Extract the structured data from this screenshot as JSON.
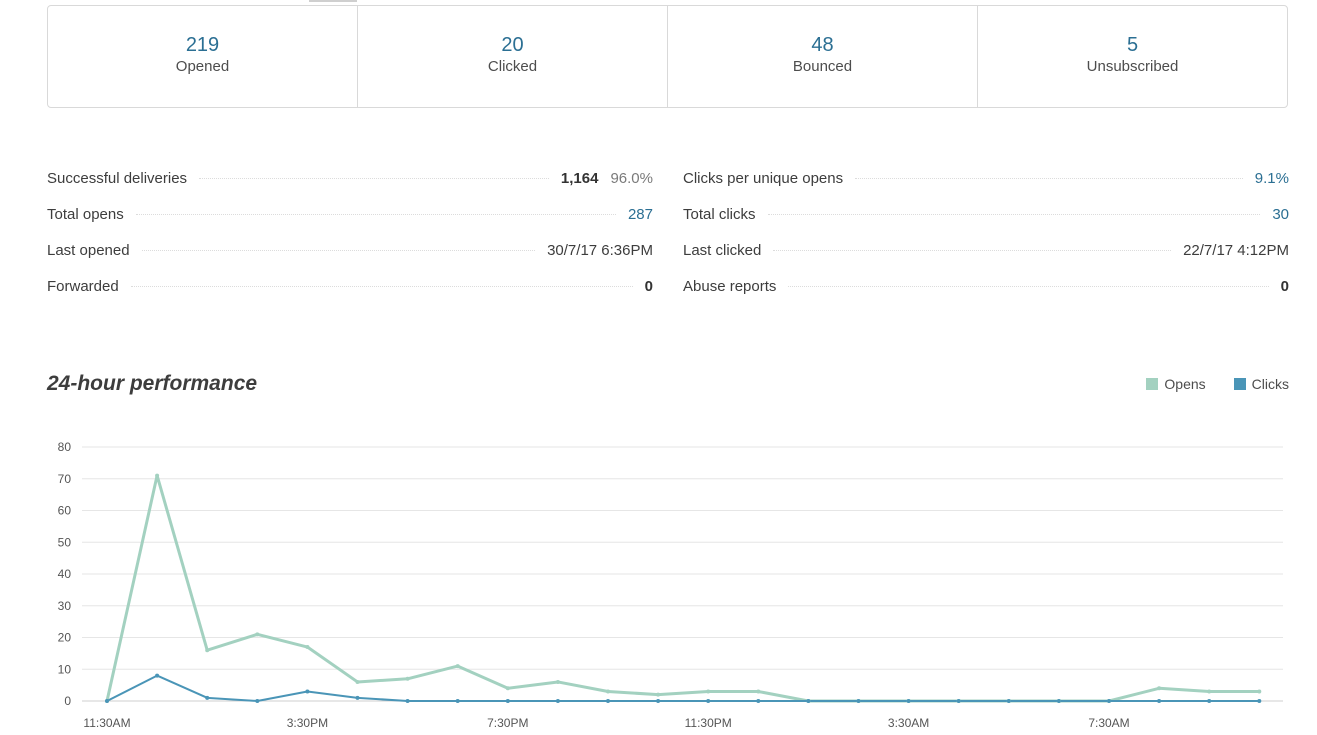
{
  "summary": [
    {
      "value": "219",
      "label": "Opened"
    },
    {
      "value": "20",
      "label": "Clicked"
    },
    {
      "value": "48",
      "label": "Bounced"
    },
    {
      "value": "5",
      "label": "Unsubscribed"
    }
  ],
  "details_left": {
    "successful_deliveries": {
      "label": "Successful deliveries",
      "value": "1,164",
      "percent": "96.0%"
    },
    "total_opens": {
      "label": "Total opens",
      "value": "287"
    },
    "last_opened": {
      "label": "Last opened",
      "value": "30/7/17 6:36PM"
    },
    "forwarded": {
      "label": "Forwarded",
      "value": "0"
    }
  },
  "details_right": {
    "clicks_per_unique_opens": {
      "label": "Clicks per unique opens",
      "value": "9.1%"
    },
    "total_clicks": {
      "label": "Total clicks",
      "value": "30"
    },
    "last_clicked": {
      "label": "Last clicked",
      "value": "22/7/17 4:12PM"
    },
    "abuse_reports": {
      "label": "Abuse reports",
      "value": "0"
    }
  },
  "performance": {
    "title": "24-hour performance",
    "legend": {
      "opens": "Opens",
      "clicks": "Clicks"
    }
  },
  "colors": {
    "opens": "#a3d1c0",
    "clicks": "#4a95b7",
    "accent": "#2b6f93"
  },
  "chart_data": {
    "type": "line",
    "x": [
      "11:30AM",
      "12:30PM",
      "1:30PM",
      "2:30PM",
      "3:30PM",
      "4:30PM",
      "5:30PM",
      "6:30PM",
      "7:30PM",
      "8:30PM",
      "9:30PM",
      "10:30PM",
      "11:30PM",
      "12:30AM",
      "1:30AM",
      "2:30AM",
      "3:30AM",
      "4:30AM",
      "5:30AM",
      "6:30AM",
      "7:30AM",
      "8:30AM",
      "9:30AM",
      "10:30AM"
    ],
    "tick_labels": [
      "11:30AM",
      "3:30PM",
      "7:30PM",
      "11:30PM",
      "3:30AM",
      "7:30AM"
    ],
    "series": [
      {
        "name": "Opens",
        "values": [
          0,
          71,
          16,
          21,
          17,
          6,
          7,
          11,
          4,
          6,
          3,
          2,
          3,
          3,
          0,
          0,
          0,
          0,
          0,
          0,
          0,
          4,
          3,
          3
        ]
      },
      {
        "name": "Clicks",
        "values": [
          0,
          8,
          1,
          0,
          3,
          1,
          0,
          0,
          0,
          0,
          0,
          0,
          0,
          0,
          0,
          0,
          0,
          0,
          0,
          0,
          0,
          0,
          0,
          0
        ]
      }
    ],
    "yticks": [
      0,
      10,
      20,
      30,
      40,
      50,
      60,
      70,
      80
    ],
    "ylim": [
      0,
      80
    ],
    "grid": true,
    "legend_position": "top-right"
  }
}
